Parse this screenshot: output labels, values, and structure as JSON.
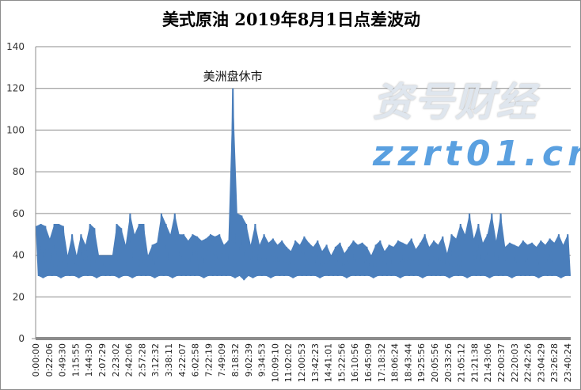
{
  "chart_data": {
    "type": "line",
    "title": "美式原油 2019年8月1日点差波动",
    "xlabel": "",
    "ylabel": "",
    "ylim": [
      0,
      140
    ],
    "yticks": [
      0,
      20,
      40,
      60,
      80,
      100,
      120,
      140
    ],
    "grid": true,
    "legend": "none",
    "color": "#4a7ebb",
    "annotation": {
      "text": "美洲盘休市",
      "at_value": 120
    },
    "x_tick_labels": [
      "0:00:00",
      "0:22:06",
      "0:49:30",
      "1:15:55",
      "1:44:30",
      "2:07:29",
      "2:23:02",
      "2:42:06",
      "2:57:28",
      "3:12:32",
      "3:38:11",
      "4:22:07",
      "6:02:58",
      "7:22:19",
      "7:49:09",
      "8:18:32",
      "9:02:39",
      "9:34:53",
      "10:09:10",
      "11:02:02",
      "12:00:53",
      "13:42:23",
      "14:41:01",
      "15:22:56",
      "16:10:56",
      "16:45:09",
      "17:18:32",
      "18:06:24",
      "18:43:44",
      "19:25:56",
      "20:05:56",
      "20:33:26",
      "21:05:12",
      "21:21:38",
      "21:43:06",
      "22:00:37",
      "22:20:03",
      "22:42:26",
      "23:04:29",
      "23:26:28",
      "23:40:24"
    ],
    "values": [
      54,
      30,
      55,
      29,
      54,
      30,
      48,
      30,
      55,
      30,
      55,
      29,
      54,
      30,
      40,
      30,
      50,
      30,
      40,
      29,
      50,
      30,
      45,
      30,
      55,
      30,
      53,
      29,
      40,
      30,
      40,
      30,
      40,
      30,
      40,
      30,
      55,
      29,
      53,
      30,
      45,
      30,
      60,
      29,
      50,
      30,
      55,
      30,
      55,
      30,
      40,
      30,
      45,
      29,
      46,
      30,
      60,
      30,
      55,
      30,
      50,
      29,
      60,
      30,
      50,
      30,
      50,
      30,
      47,
      30,
      50,
      30,
      49,
      30,
      47,
      29,
      48,
      30,
      50,
      30,
      49,
      30,
      50,
      30,
      45,
      30,
      47,
      30,
      120,
      29,
      60,
      30,
      59,
      28,
      55,
      30,
      45,
      29,
      55,
      30,
      45,
      30,
      50,
      30,
      46,
      29,
      48,
      30,
      45,
      30,
      47,
      30,
      44,
      30,
      42,
      29,
      47,
      30,
      45,
      30,
      49,
      30,
      46,
      30,
      44,
      30,
      47,
      29,
      42,
      30,
      45,
      30,
      40,
      30,
      44,
      30,
      46,
      30,
      41,
      29,
      44,
      30,
      47,
      30,
      45,
      30,
      46,
      30,
      44,
      30,
      40,
      29,
      45,
      30,
      47,
      30,
      42,
      30,
      45,
      30,
      44,
      30,
      47,
      29,
      46,
      30,
      45,
      30,
      48,
      30,
      43,
      30,
      46,
      29,
      50,
      30,
      44,
      30,
      47,
      30,
      45,
      30,
      49,
      30,
      41,
      29,
      50,
      30,
      48,
      30,
      55,
      30,
      50,
      29,
      60,
      30,
      48,
      30,
      55,
      30,
      46,
      30,
      50,
      29,
      60,
      30,
      47,
      30,
      60,
      30,
      44,
      30,
      46,
      29,
      45,
      30,
      44,
      30,
      47,
      30,
      45,
      30,
      46,
      30,
      44,
      29,
      47,
      30,
      45,
      30,
      48,
      30,
      46,
      30,
      50,
      29,
      45,
      30,
      50,
      30
    ]
  },
  "watermark": {
    "cn": "资号财经",
    "url": "zzrt01.cn"
  }
}
